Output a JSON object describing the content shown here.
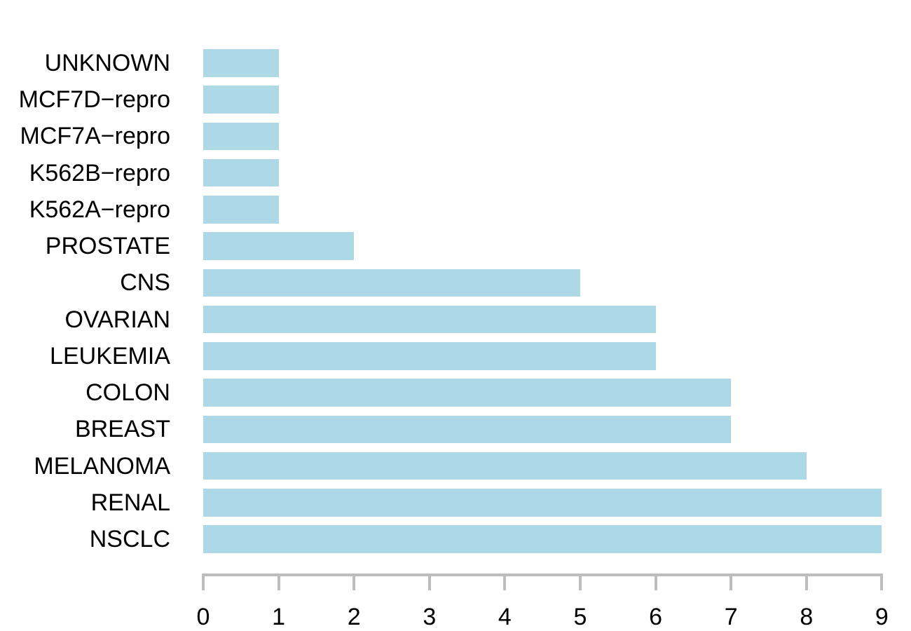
{
  "chart_data": {
    "type": "bar",
    "orientation": "horizontal",
    "title": "",
    "xlabel": "",
    "ylabel": "",
    "categories": [
      "UNKNOWN",
      "MCF7D−repro",
      "MCF7A−repro",
      "K562B−repro",
      "K562A−repro",
      "PROSTATE",
      "CNS",
      "OVARIAN",
      "LEUKEMIA",
      "COLON",
      "BREAST",
      "MELANOMA",
      "RENAL",
      "NSCLC"
    ],
    "values": [
      1,
      1,
      1,
      1,
      1,
      2,
      5,
      6,
      6,
      7,
      7,
      8,
      9,
      9
    ],
    "xlim": [
      0,
      9
    ],
    "x_ticks": [
      0,
      1,
      2,
      3,
      4,
      5,
      6,
      7,
      8,
      9
    ],
    "grid": false,
    "legend": false,
    "colors": {
      "bar": "#ADD8E6",
      "axis": "#BDBDBD",
      "text": "#000000",
      "background": "#FFFFFF"
    }
  }
}
